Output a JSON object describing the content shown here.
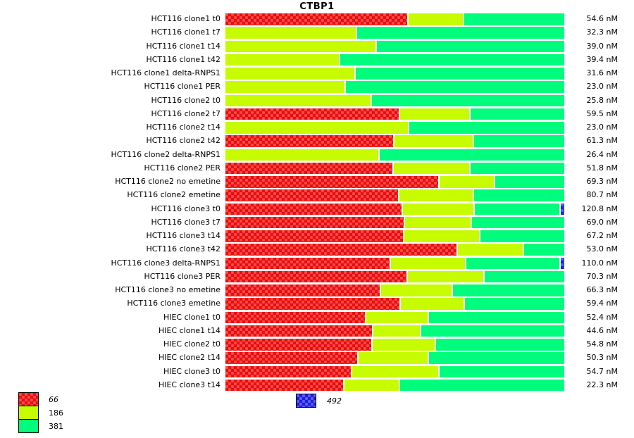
{
  "title": "CTBP1",
  "value_unit": "nM",
  "chart_data": {
    "type": "bar",
    "orientation": "horizontal",
    "stacked": true,
    "title": "CTBP1",
    "value_axis": "segment share (% of bar width)",
    "annotation_axis": "concentration (nM)",
    "legend_position": "bottom",
    "series": [
      {
        "name": "66",
        "color": "#e60d0d",
        "dot_color": "#ff4a4a",
        "patterned": true,
        "label_italic": true,
        "legend_placement": "left"
      },
      {
        "name": "186",
        "color": "#c6fb00",
        "dot_color": "",
        "patterned": false,
        "label_italic": false,
        "legend_placement": "left"
      },
      {
        "name": "381",
        "color": "#00fc7c",
        "dot_color": "",
        "patterned": false,
        "label_italic": false,
        "legend_placement": "left"
      },
      {
        "name": "492",
        "color": "#1e1ed2",
        "dot_color": "#5c5cff",
        "patterned": true,
        "label_italic": true,
        "legend_placement": "center"
      }
    ],
    "rows": [
      {
        "label": "HCT116 clone1 t0",
        "annotation": "54.6 nM",
        "values_pct": [
          53.6,
          16.4,
          30.0,
          0
        ]
      },
      {
        "label": "HCT116 clone1 t7",
        "annotation": "32.3 nM",
        "values_pct": [
          0,
          38.5,
          61.5,
          0
        ]
      },
      {
        "label": "HCT116 clone1 t14",
        "annotation": "39.0 nM",
        "values_pct": [
          0,
          44.3,
          55.7,
          0
        ]
      },
      {
        "label": "HCT116 clone1 t42",
        "annotation": "39.4 nM",
        "values_pct": [
          0,
          33.5,
          66.5,
          0
        ]
      },
      {
        "label": "HCT116 clone1 delta-RNPS1",
        "annotation": "31.6 nM",
        "values_pct": [
          0,
          38.0,
          62.0,
          0
        ]
      },
      {
        "label": "HCT116 clone1 PER",
        "annotation": "23.0 nM",
        "values_pct": [
          0,
          35.1,
          64.9,
          0
        ]
      },
      {
        "label": "HCT116 clone2 t0",
        "annotation": "25.8 nM",
        "values_pct": [
          0,
          42.8,
          57.2,
          0
        ]
      },
      {
        "label": "HCT116 clone2 t7",
        "annotation": "59.5 nM",
        "values_pct": [
          51.1,
          20.8,
          28.1,
          0
        ]
      },
      {
        "label": "HCT116 clone2 t14",
        "annotation": "23.0 nM",
        "values_pct": [
          0,
          53.8,
          46.2,
          0
        ]
      },
      {
        "label": "HCT116 clone2 t42",
        "annotation": "61.3 nM",
        "values_pct": [
          49.5,
          23.5,
          27.0,
          0
        ]
      },
      {
        "label": "HCT116 clone2 delta-RNPS1",
        "annotation": "26.4 nM",
        "values_pct": [
          0,
          45.1,
          54.9,
          0
        ]
      },
      {
        "label": "HCT116 clone2 PER",
        "annotation": "51.8 nM",
        "values_pct": [
          49.3,
          22.7,
          28.0,
          0
        ]
      },
      {
        "label": "HCT116 clone2 no emetine",
        "annotation": "69.3 nM",
        "values_pct": [
          62.8,
          16.4,
          20.8,
          0
        ]
      },
      {
        "label": "HCT116 clone2 emetine",
        "annotation": "80.7 nM",
        "values_pct": [
          50.9,
          22.0,
          27.1,
          0
        ]
      },
      {
        "label": "HCT116 clone3 t0",
        "annotation": "120.8 nM",
        "values_pct": [
          52.0,
          21.2,
          25.4,
          1.4
        ]
      },
      {
        "label": "HCT116 clone3 t7",
        "annotation": "69.0 nM",
        "values_pct": [
          52.6,
          19.8,
          27.6,
          0
        ]
      },
      {
        "label": "HCT116 clone3 t14",
        "annotation": "67.2 nM",
        "values_pct": [
          52.4,
          22.5,
          25.1,
          0
        ]
      },
      {
        "label": "HCT116 clone3 t42",
        "annotation": "53.0 nM",
        "values_pct": [
          68.2,
          19.5,
          12.3,
          0
        ]
      },
      {
        "label": "HCT116 clone3 delta-RNPS1",
        "annotation": "110.0 nM",
        "values_pct": [
          48.4,
          22.2,
          27.9,
          1.5
        ]
      },
      {
        "label": "HCT116 clone3 PER",
        "annotation": "70.3 nM",
        "values_pct": [
          53.4,
          22.7,
          23.9,
          0
        ]
      },
      {
        "label": "HCT116 clone3 no emetine",
        "annotation": "66.3 nM",
        "values_pct": [
          45.5,
          21.2,
          33.3,
          0
        ]
      },
      {
        "label": "HCT116 clone3 emetine",
        "annotation": "59.4 nM",
        "values_pct": [
          51.4,
          18.9,
          29.7,
          0
        ]
      },
      {
        "label": "HIEC clone1 t0",
        "annotation": "52.4 nM",
        "values_pct": [
          41.2,
          18.5,
          40.3,
          0
        ]
      },
      {
        "label": "HIEC clone1 t14",
        "annotation": "44.6 nM",
        "values_pct": [
          43.2,
          14.1,
          42.7,
          0
        ]
      },
      {
        "label": "HIEC clone2 t0",
        "annotation": "54.8 nM",
        "values_pct": [
          43.0,
          18.7,
          38.3,
          0
        ]
      },
      {
        "label": "HIEC clone2 t14",
        "annotation": "50.3 nM",
        "values_pct": [
          38.9,
          20.8,
          40.3,
          0
        ]
      },
      {
        "label": "HIEC clone3 t0",
        "annotation": "54.7 nM",
        "values_pct": [
          37.0,
          25.8,
          37.2,
          0
        ]
      },
      {
        "label": "HIEC clone3 t14",
        "annotation": "22.3 nM",
        "values_pct": [
          34.7,
          16.4,
          48.9,
          0
        ]
      }
    ]
  }
}
